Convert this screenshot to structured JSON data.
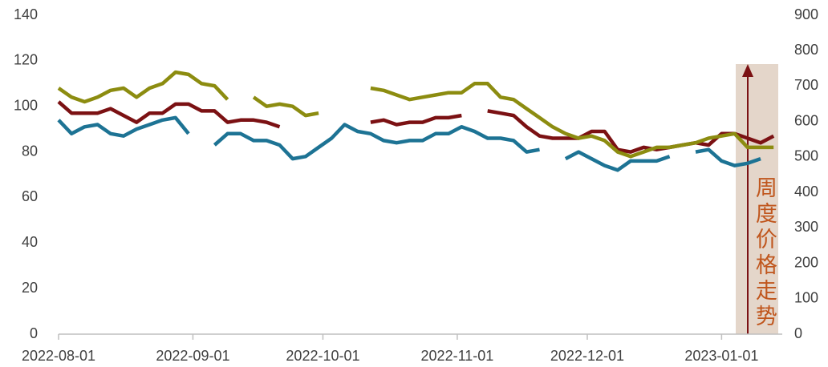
{
  "chart_data": {
    "type": "line",
    "annotation": "周度价格走势",
    "x": [
      "2022-08-01",
      "2022-08-04",
      "2022-08-07",
      "2022-08-10",
      "2022-08-13",
      "2022-08-16",
      "2022-08-19",
      "2022-08-22",
      "2022-08-25",
      "2022-08-28",
      "2022-08-31",
      "2022-09-03",
      "2022-09-06",
      "2022-09-09",
      "2022-09-12",
      "2022-09-15",
      "2022-09-18",
      "2022-09-21",
      "2022-09-24",
      "2022-09-27",
      "2022-09-30",
      "2022-10-03",
      "2022-10-06",
      "2022-10-09",
      "2022-10-12",
      "2022-10-15",
      "2022-10-18",
      "2022-10-21",
      "2022-10-24",
      "2022-10-27",
      "2022-10-30",
      "2022-11-02",
      "2022-11-05",
      "2022-11-08",
      "2022-11-11",
      "2022-11-14",
      "2022-11-17",
      "2022-11-20",
      "2022-11-23",
      "2022-11-26",
      "2022-11-29",
      "2022-12-02",
      "2022-12-05",
      "2022-12-08",
      "2022-12-11",
      "2022-12-14",
      "2022-12-17",
      "2022-12-20",
      "2022-12-23",
      "2022-12-26",
      "2022-12-29",
      "2023-01-01",
      "2023-01-04",
      "2023-01-07",
      "2023-01-10",
      "2023-01-13"
    ],
    "series": [
      {
        "color": "#1d7394",
        "values": [
          94,
          88,
          91,
          92,
          88,
          87,
          90,
          92,
          94,
          95,
          88,
          null,
          83,
          88,
          88,
          85,
          85,
          83,
          77,
          78,
          82,
          86,
          92,
          89,
          88,
          85,
          84,
          85,
          85,
          88,
          88,
          91,
          89,
          86,
          86,
          85,
          80,
          81,
          null,
          77,
          80,
          77,
          74,
          72,
          76,
          76,
          76,
          78,
          null,
          80,
          81,
          76,
          74,
          75,
          77,
          null
        ]
      },
      {
        "color": "#7b1113",
        "values": [
          102,
          97,
          97,
          97,
          99,
          96,
          93,
          97,
          97,
          101,
          101,
          98,
          98,
          93,
          94,
          94,
          93,
          91,
          null,
          null,
          null,
          null,
          null,
          null,
          93,
          94,
          92,
          93,
          93,
          95,
          95,
          96,
          null,
          98,
          97,
          96,
          91,
          87,
          86,
          86,
          86,
          89,
          89,
          81,
          80,
          82,
          81,
          82,
          83,
          84,
          83,
          88,
          88,
          86,
          84,
          87
        ]
      },
      {
        "color": "#8c8c10",
        "values": [
          108,
          104,
          102,
          104,
          107,
          108,
          104,
          108,
          110,
          115,
          114,
          110,
          109,
          103,
          null,
          104,
          100,
          101,
          100,
          96,
          97,
          null,
          null,
          null,
          108,
          107,
          105,
          103,
          104,
          105,
          106,
          106,
          110,
          110,
          104,
          103,
          99,
          95,
          91,
          88,
          86,
          87,
          85,
          80,
          78,
          80,
          82,
          82,
          83,
          84,
          86,
          87,
          88,
          82,
          82,
          82
        ]
      }
    ],
    "xlim": [
      "2022-08-01",
      "2023-01-15"
    ],
    "xticks": [
      "2022-08-01",
      "2022-09-01",
      "2022-10-01",
      "2022-11-01",
      "2022-12-01",
      "2023-01-01"
    ],
    "ylim": [
      0,
      140
    ],
    "yticks": [
      0,
      20,
      40,
      60,
      80,
      100,
      120,
      140
    ],
    "y2lim": [
      0,
      900
    ],
    "y2ticks": [
      0,
      100,
      200,
      300,
      400,
      500,
      600,
      700,
      800,
      900
    ]
  }
}
